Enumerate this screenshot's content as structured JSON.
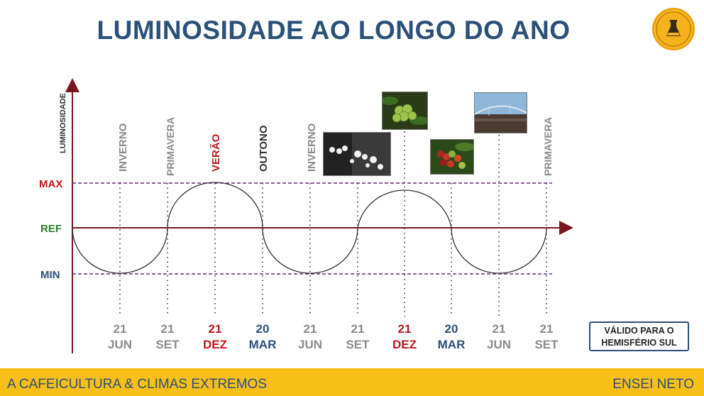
{
  "title": "LUMINOSIDADE AO LONGO DO ANO",
  "y_axis_label": "LUMINOSIDADE",
  "levels": {
    "max": "MAX",
    "ref": "REF",
    "min": "MIN"
  },
  "seasons": [
    {
      "label": "INVERNO",
      "color": "#8a8a8a"
    },
    {
      "label": "PRIMAVERA",
      "color": "#8a8a8a"
    },
    {
      "label": "VERÃO",
      "color": "#c0161c"
    },
    {
      "label": "OUTONO",
      "color": "#333333"
    },
    {
      "label": "INVERNO",
      "color": "#8a8a8a"
    },
    {
      "label": "PRIMAVERA",
      "color": "#8a8a8a"
    }
  ],
  "dates": [
    {
      "day": "21",
      "month": "JUN",
      "color": "#8a8a8a"
    },
    {
      "day": "21",
      "month": "SET",
      "color": "#8a8a8a"
    },
    {
      "day": "21",
      "month": "DEZ",
      "color": "#c0161c"
    },
    {
      "day": "20",
      "month": "MAR",
      "color": "#2b5079"
    },
    {
      "day": "21",
      "month": "JUN",
      "color": "#8a8a8a"
    },
    {
      "day": "21",
      "month": "SET",
      "color": "#8a8a8a"
    },
    {
      "day": "21",
      "month": "DEZ",
      "color": "#c0161c"
    },
    {
      "day": "20",
      "month": "MAR",
      "color": "#2b5079"
    },
    {
      "day": "21",
      "month": "JUN",
      "color": "#8a8a8a"
    },
    {
      "day": "21",
      "month": "SET",
      "color": "#8a8a8a"
    }
  ],
  "note": {
    "line1": "VÁLIDO PARA O",
    "line2": "HEMISFÉRIO SUL"
  },
  "footer": {
    "left": "A CAFEICULTURA & CLIMAS EXTREMOS",
    "right": "ENSEI NETO"
  },
  "colors": {
    "title": "#2b5079",
    "axis": "#7a1620",
    "max": "#c0161c",
    "ref": "#2e7d32",
    "min": "#2b5079",
    "dashed": "#6a2a7a",
    "footer_bg": "#f7bf17"
  },
  "photos": [
    "coffee-flowers",
    "green-coffee-cherries",
    "ripe-coffee-cherries",
    "coffee-drying-patio"
  ]
}
